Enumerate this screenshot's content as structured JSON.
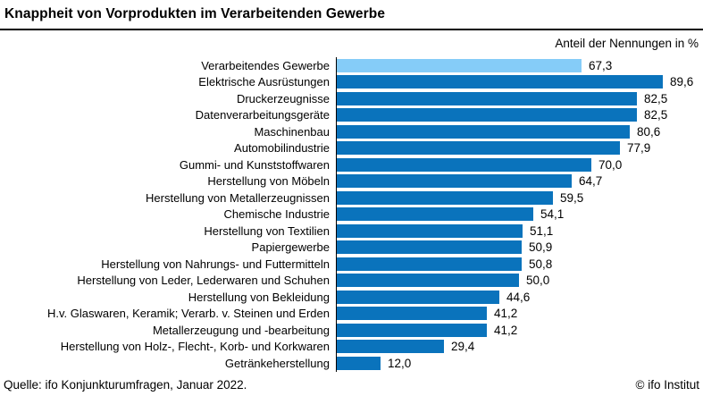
{
  "title": "Knappheit von Vorprodukten im Verarbeitenden Gewerbe",
  "subtitle": "Anteil der Nennungen in %",
  "footer": {
    "source": "Quelle: ifo Konjunkturumfragen, Januar 2022.",
    "copyright": "© ifo Institut"
  },
  "colors": {
    "bar": "#0a73bc",
    "highlight_bar": "#85ccf8",
    "axis": "#000000"
  },
  "chart_data": {
    "type": "bar",
    "orientation": "horizontal",
    "title": "Knappheit von Vorprodukten im Verarbeitenden Gewerbe",
    "xlabel": "Anteil der Nennungen in %",
    "xlim": [
      0,
      100
    ],
    "grid": false,
    "legend": "none",
    "highlight_index": 0,
    "categories": [
      "Verarbeitendes Gewerbe",
      "Elektrische Ausrüstungen",
      "Druckerzeugnisse",
      "Datenverarbeitungsgeräte",
      "Maschinenbau",
      "Automobilindustrie",
      "Gummi- und Kunststoffwaren",
      "Herstellung von Möbeln",
      "Herstellung von Metallerzeugnissen",
      "Chemische Industrie",
      "Herstellung von Textilien",
      "Papiergewerbe",
      "Herstellung von Nahrungs- und Futtermitteln",
      "Herstellung von Leder, Lederwaren und Schuhen",
      "Herstellung von Bekleidung",
      "H.v. Glaswaren, Keramik; Verarb. v. Steinen und Erden",
      "Metallerzeugung und -bearbeitung",
      "Herstellung von Holz-, Flecht-, Korb- und Korkwaren",
      "Getränkeherstellung"
    ],
    "values": [
      67.3,
      89.6,
      82.5,
      82.5,
      80.6,
      77.9,
      70.0,
      64.7,
      59.5,
      54.1,
      51.1,
      50.9,
      50.8,
      50.0,
      44.6,
      41.2,
      41.2,
      29.4,
      12.0
    ],
    "value_labels": [
      "67,3",
      "89,6",
      "82,5",
      "82,5",
      "80,6",
      "77,9",
      "70,0",
      "64,7",
      "59,5",
      "54,1",
      "51,1",
      "50,9",
      "50,8",
      "50,0",
      "44,6",
      "41,2",
      "41,2",
      "29,4",
      "12,0"
    ]
  }
}
